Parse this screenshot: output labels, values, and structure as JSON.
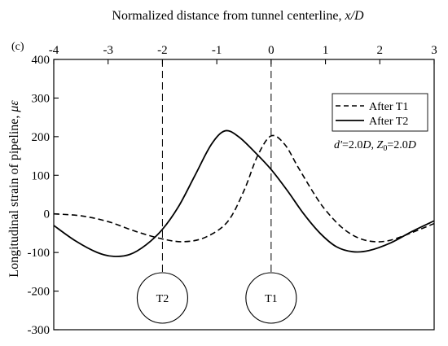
{
  "chart_data": {
    "type": "line",
    "panel_label": "(c)",
    "xlabel_prefix": "Normalized distance from tunnel centerline, ",
    "xlabel_var": "x/D",
    "ylabel_prefix": "Longitudinal strain of pipeline, ",
    "ylabel_unit": "με",
    "xlim": [
      -4,
      3
    ],
    "ylim": [
      -300,
      400
    ],
    "x_ticks": [
      -4,
      -3,
      -2,
      -1,
      0,
      1,
      2,
      3
    ],
    "y_ticks": [
      -300,
      -200,
      -100,
      0,
      100,
      200,
      300,
      400
    ],
    "x_axis_position": "top",
    "grid": false,
    "legend_position": "right",
    "annotation": {
      "d_var": "d'",
      "d_value": "=2.0",
      "d_unit": "D",
      "sep": ", ",
      "z_var": "Z",
      "z_sub": "0",
      "z_value": "=2.0",
      "z_unit": "D"
    },
    "tunnels": [
      {
        "label": "T2",
        "x": -2
      },
      {
        "label": "T1",
        "x": 0
      }
    ],
    "series": [
      {
        "name": "After T1",
        "style": "dashed",
        "points": [
          [
            -4.0,
            0
          ],
          [
            -3.5,
            -5
          ],
          [
            -3.0,
            -20
          ],
          [
            -2.5,
            -45
          ],
          [
            -2.0,
            -65
          ],
          [
            -1.6,
            -72
          ],
          [
            -1.2,
            -60
          ],
          [
            -0.8,
            -20
          ],
          [
            -0.5,
            60
          ],
          [
            -0.25,
            150
          ],
          [
            0.0,
            202
          ],
          [
            0.25,
            180
          ],
          [
            0.5,
            120
          ],
          [
            0.8,
            50
          ],
          [
            1.0,
            10
          ],
          [
            1.3,
            -35
          ],
          [
            1.6,
            -62
          ],
          [
            1.9,
            -72
          ],
          [
            2.2,
            -68
          ],
          [
            2.6,
            -48
          ],
          [
            3.0,
            -25
          ]
        ]
      },
      {
        "name": "After T2",
        "style": "solid",
        "points": [
          [
            -4.0,
            -30
          ],
          [
            -3.6,
            -70
          ],
          [
            -3.2,
            -100
          ],
          [
            -2.9,
            -110
          ],
          [
            -2.6,
            -105
          ],
          [
            -2.3,
            -80
          ],
          [
            -2.0,
            -40
          ],
          [
            -1.7,
            20
          ],
          [
            -1.4,
            100
          ],
          [
            -1.1,
            180
          ],
          [
            -0.85,
            215
          ],
          [
            -0.6,
            200
          ],
          [
            -0.3,
            160
          ],
          [
            0.0,
            115
          ],
          [
            0.3,
            60
          ],
          [
            0.6,
            0
          ],
          [
            0.9,
            -50
          ],
          [
            1.2,
            -85
          ],
          [
            1.5,
            -98
          ],
          [
            1.8,
            -95
          ],
          [
            2.2,
            -75
          ],
          [
            2.6,
            -45
          ],
          [
            3.0,
            -18
          ]
        ]
      }
    ]
  }
}
